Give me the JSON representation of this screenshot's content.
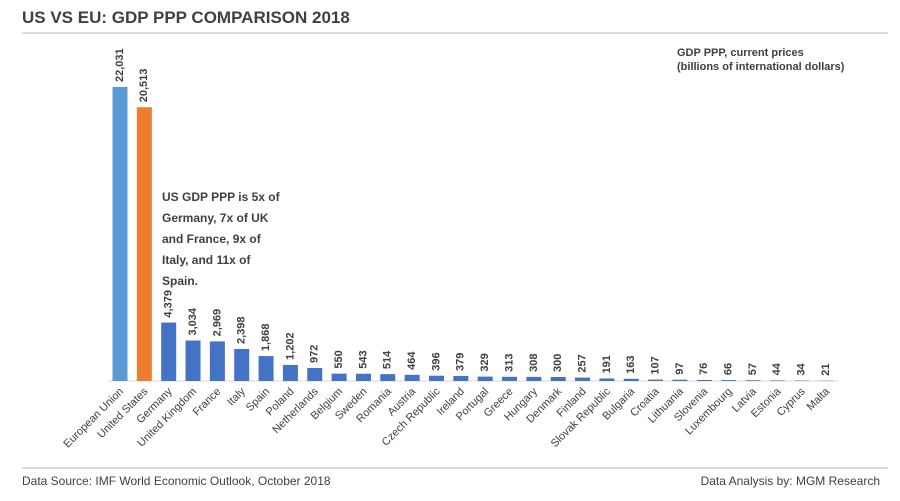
{
  "chart_data": {
    "type": "bar",
    "title": "US VS EU: GDP PPP COMPARISON 2018",
    "units_note": [
      "GDP PPP, current prices",
      "(billions of international dollars)"
    ],
    "annotation": [
      "US GDP PPP is 5x of",
      "Germany, 7x of UK",
      "and France, 9x of",
      "Italy, and 11x of",
      "Spain."
    ],
    "categories": [
      "European Union",
      "United States",
      "Germany",
      "United Kingdom",
      "France",
      "Italy",
      "Spain",
      "Poland",
      "Netherlands",
      "Belgium",
      "Sweden",
      "Romania",
      "Austria",
      "Czech Republic",
      "Ireland",
      "Portugal",
      "Greece",
      "Hungary",
      "Denmark",
      "Finland",
      "Slovak Republic",
      "Bulgaria",
      "Croatia",
      "Lithuania",
      "Slovenia",
      "Luxembourg",
      "Latvia",
      "Estonia",
      "Cyprus",
      "Malta"
    ],
    "values": [
      22031,
      20513,
      4379,
      3034,
      2969,
      2398,
      1868,
      1202,
      972,
      550,
      543,
      514,
      464,
      396,
      379,
      329,
      313,
      308,
      300,
      257,
      191,
      163,
      107,
      97,
      76,
      66,
      57,
      44,
      34,
      21
    ],
    "value_labels": [
      "22,031",
      "20,513",
      "4,379",
      "3,034",
      "2,969",
      "2,398",
      "1,868",
      "1,202",
      "972",
      "550",
      "543",
      "514",
      "464",
      "396",
      "379",
      "329",
      "313",
      "308",
      "300",
      "257",
      "191",
      "163",
      "107",
      "97",
      "76",
      "66",
      "57",
      "44",
      "34",
      "21"
    ],
    "colors": [
      "#5b9bd5",
      "#ed7d31",
      "#4472c4",
      "#4472c4",
      "#4472c4",
      "#4472c4",
      "#4472c4",
      "#4472c4",
      "#4472c4",
      "#4472c4",
      "#4472c4",
      "#4472c4",
      "#4472c4",
      "#4472c4",
      "#4472c4",
      "#4472c4",
      "#4472c4",
      "#4472c4",
      "#4472c4",
      "#4472c4",
      "#4472c4",
      "#4472c4",
      "#4472c4",
      "#4472c4",
      "#4472c4",
      "#4472c4",
      "#4472c4",
      "#4472c4",
      "#4472c4",
      "#4472c4"
    ],
    "footer_left": "Data Source: IMF World Economic Outlook, October 2018",
    "footer_right": "Data Analysis by: MGM Research"
  }
}
